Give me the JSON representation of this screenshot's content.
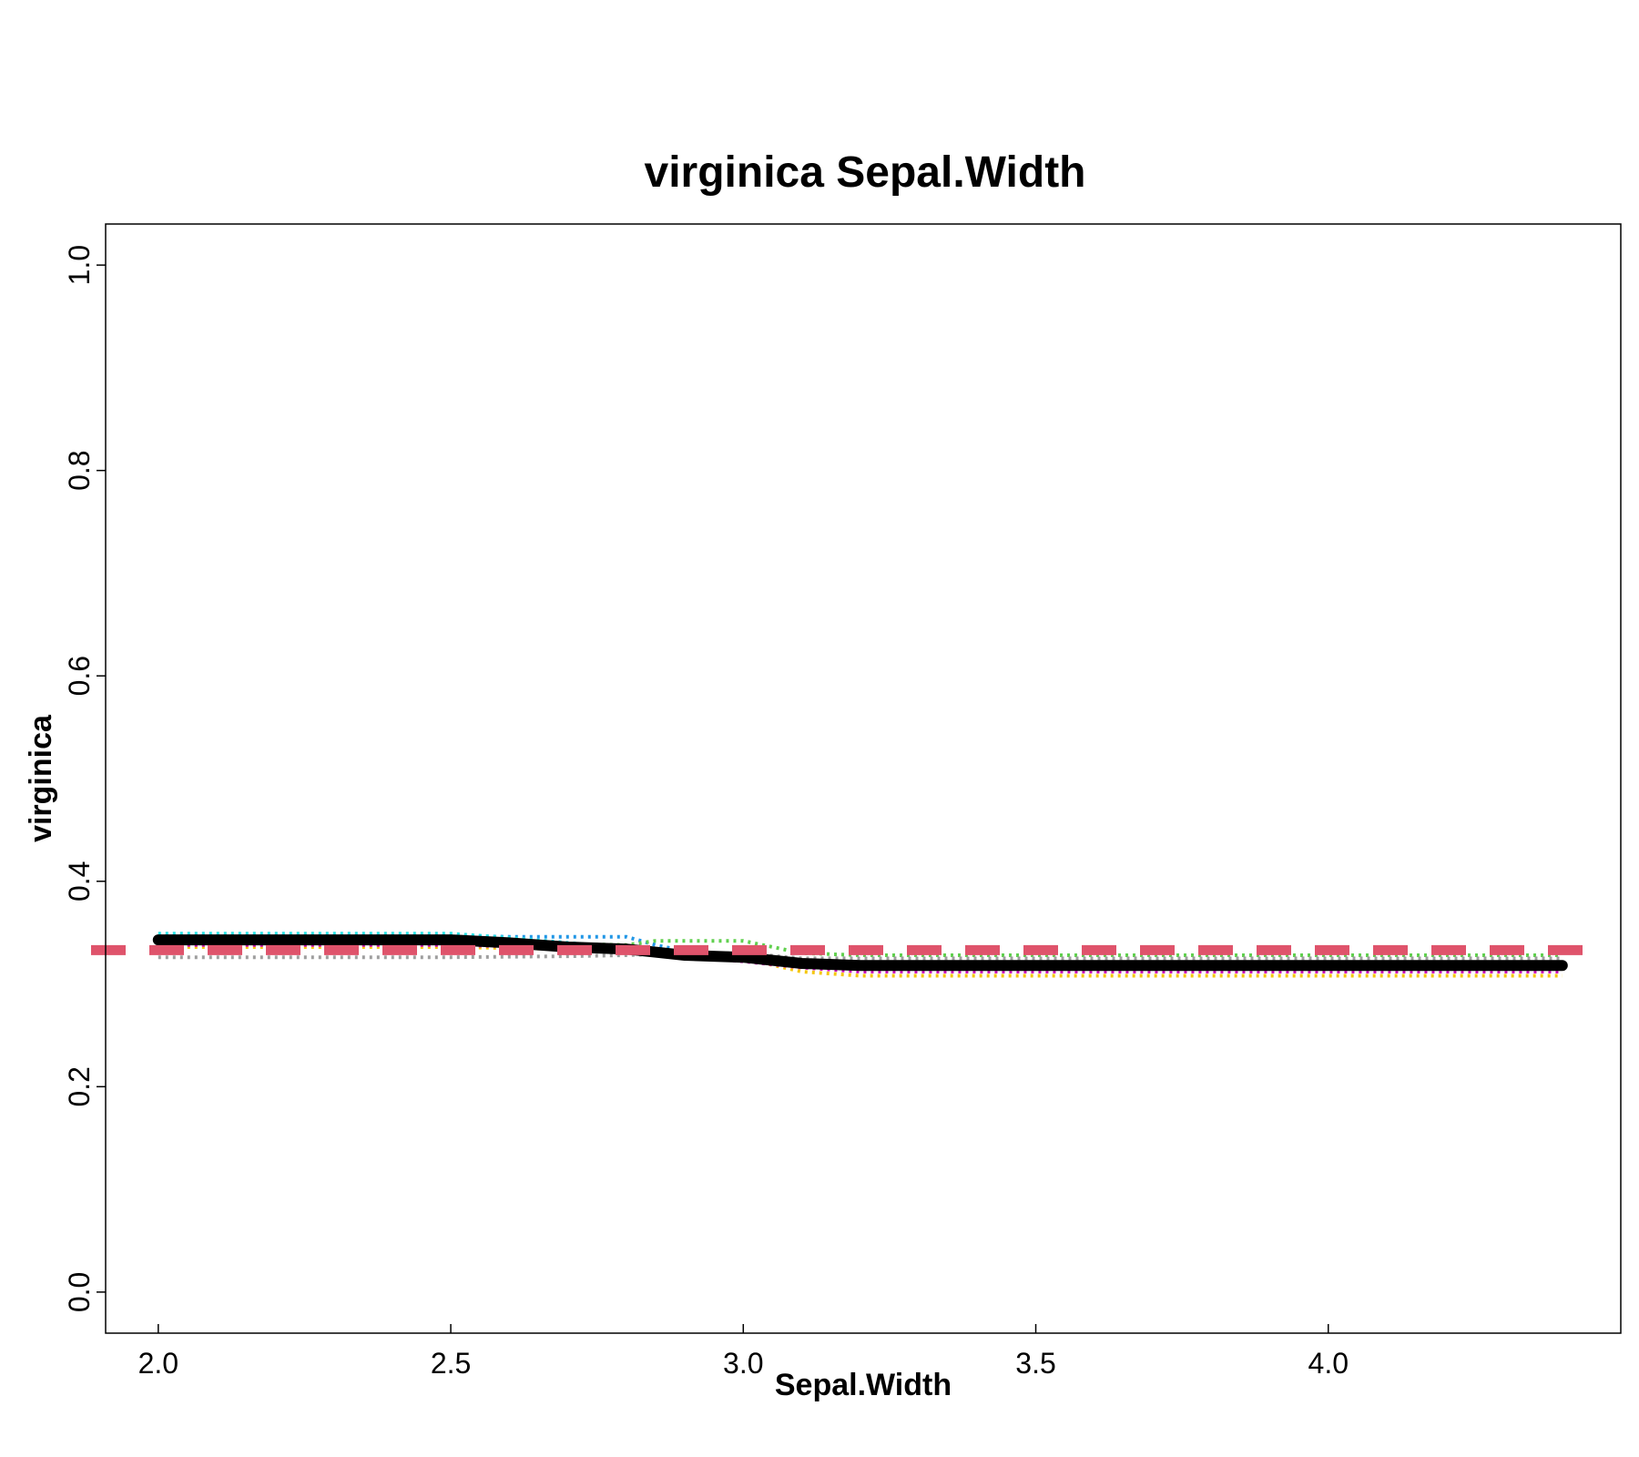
{
  "chart_data": {
    "type": "line",
    "title": "virginica  Sepal.Width",
    "xlabel": "Sepal.Width",
    "ylabel": "virginica",
    "xlim": [
      1.91,
      4.5
    ],
    "ylim": [
      -0.04,
      1.04
    ],
    "xticks": [
      2.0,
      2.5,
      3.0,
      3.5,
      4.0
    ],
    "xtick_labels": [
      "2.0",
      "2.5",
      "3.0",
      "3.5",
      "4.0"
    ],
    "yticks": [
      0.0,
      0.2,
      0.4,
      0.6,
      0.8,
      1.0
    ],
    "ytick_labels": [
      "0.0",
      "0.2",
      "0.4",
      "0.6",
      "0.8",
      "1.0"
    ],
    "grid": false,
    "legend": "none",
    "reference_line": {
      "y": 0.333,
      "color": "#DF536B",
      "style": "dashed"
    },
    "series": [
      {
        "color": "#000000",
        "style": "solid",
        "x": [
          2.0,
          2.5,
          2.6,
          2.7,
          2.8,
          2.9,
          3.0,
          3.1,
          3.2,
          3.5,
          4.0,
          4.4
        ],
        "y": [
          0.343,
          0.343,
          0.34,
          0.336,
          0.334,
          0.328,
          0.326,
          0.32,
          0.318,
          0.318,
          0.318,
          0.318
        ]
      },
      {
        "color": "#2297E6",
        "style": "dotted",
        "x": [
          2.0,
          2.5,
          2.6,
          2.8,
          2.85,
          2.95,
          3.1,
          3.2,
          4.4
        ],
        "y": [
          0.347,
          0.347,
          0.346,
          0.346,
          0.338,
          0.326,
          0.322,
          0.32,
          0.32
        ]
      },
      {
        "color": "#28E2E5",
        "style": "dotted",
        "x": [
          2.0,
          2.5,
          2.6,
          2.7,
          2.8,
          2.9,
          3.0,
          3.1,
          3.2,
          4.4
        ],
        "y": [
          0.349,
          0.349,
          0.345,
          0.34,
          0.336,
          0.33,
          0.328,
          0.323,
          0.321,
          0.321
        ]
      },
      {
        "color": "#61D04F",
        "style": "dotted",
        "x": [
          2.0,
          2.5,
          2.7,
          2.8,
          2.85,
          3.0,
          3.1,
          3.2,
          4.4
        ],
        "y": [
          0.341,
          0.341,
          0.339,
          0.338,
          0.342,
          0.342,
          0.33,
          0.328,
          0.328
        ]
      },
      {
        "color": "#F5C710",
        "style": "dotted",
        "x": [
          2.0,
          2.5,
          2.7,
          2.9,
          3.0,
          3.1,
          3.2,
          4.4
        ],
        "y": [
          0.336,
          0.336,
          0.334,
          0.33,
          0.325,
          0.312,
          0.308,
          0.308
        ]
      },
      {
        "color": "#CD0BBC",
        "style": "dotted",
        "x": [
          2.0,
          2.5,
          2.8,
          2.9,
          3.0,
          3.1,
          3.2,
          4.4
        ],
        "y": [
          0.338,
          0.338,
          0.334,
          0.326,
          0.322,
          0.316,
          0.312,
          0.312
        ]
      },
      {
        "color": "#9E9E9E",
        "style": "dotted",
        "x": [
          2.0,
          2.5,
          2.7,
          2.8,
          2.9,
          3.0,
          3.1,
          3.2,
          4.4
        ],
        "y": [
          0.326,
          0.326,
          0.327,
          0.328,
          0.33,
          0.33,
          0.325,
          0.325,
          0.325
        ]
      }
    ]
  }
}
